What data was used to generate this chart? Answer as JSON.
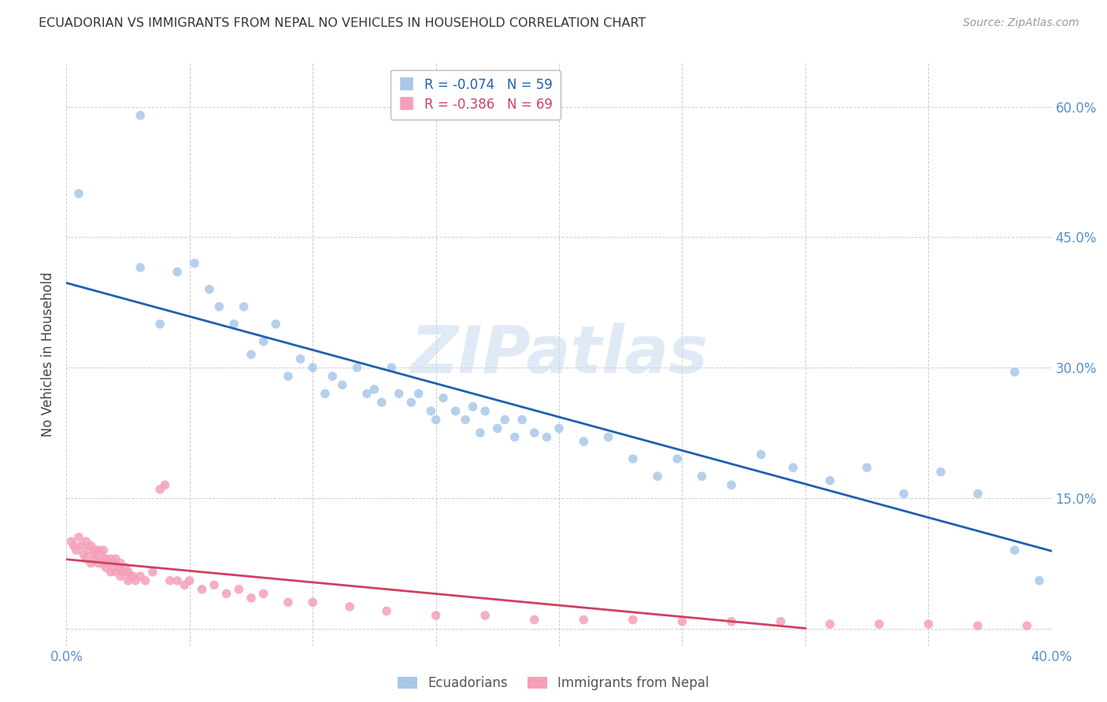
{
  "title": "ECUADORIAN VS IMMIGRANTS FROM NEPAL NO VEHICLES IN HOUSEHOLD CORRELATION CHART",
  "source": "Source: ZipAtlas.com",
  "ylabel": "No Vehicles in Household",
  "xlim": [
    0.0,
    0.4
  ],
  "ylim": [
    -0.02,
    0.65
  ],
  "xticks": [
    0.0,
    0.05,
    0.1,
    0.15,
    0.2,
    0.25,
    0.3,
    0.35,
    0.4
  ],
  "yticks": [
    0.0,
    0.15,
    0.3,
    0.45,
    0.6
  ],
  "ytick_labels": [
    "",
    "15.0%",
    "30.0%",
    "45.0%",
    "60.0%"
  ],
  "xtick_labels": [
    "0.0%",
    "",
    "",
    "",
    "",
    "",
    "",
    "",
    "40.0%"
  ],
  "watermark": "ZIPatlas",
  "blue_R": -0.074,
  "blue_N": 59,
  "pink_R": -0.386,
  "pink_N": 69,
  "blue_color": "#a8c8e8",
  "pink_color": "#f4a0b8",
  "blue_line_color": "#2060b0",
  "pink_line_color": "#d04060",
  "blue_scatter_x": [
    0.005,
    0.03,
    0.038,
    0.045,
    0.052,
    0.058,
    0.062,
    0.068,
    0.072,
    0.075,
    0.08,
    0.085,
    0.09,
    0.095,
    0.1,
    0.105,
    0.108,
    0.112,
    0.118,
    0.122,
    0.125,
    0.128,
    0.132,
    0.135,
    0.14,
    0.143,
    0.148,
    0.15,
    0.153,
    0.158,
    0.162,
    0.165,
    0.168,
    0.17,
    0.175,
    0.178,
    0.182,
    0.185,
    0.19,
    0.195,
    0.2,
    0.21,
    0.22,
    0.23,
    0.24,
    0.248,
    0.258,
    0.27,
    0.282,
    0.295,
    0.31,
    0.325,
    0.34,
    0.355,
    0.37,
    0.385,
    0.395,
    0.385,
    0.03
  ],
  "blue_scatter_y": [
    0.5,
    0.415,
    0.35,
    0.41,
    0.42,
    0.39,
    0.37,
    0.35,
    0.37,
    0.315,
    0.33,
    0.35,
    0.29,
    0.31,
    0.3,
    0.27,
    0.29,
    0.28,
    0.3,
    0.27,
    0.275,
    0.26,
    0.3,
    0.27,
    0.26,
    0.27,
    0.25,
    0.24,
    0.265,
    0.25,
    0.24,
    0.255,
    0.225,
    0.25,
    0.23,
    0.24,
    0.22,
    0.24,
    0.225,
    0.22,
    0.23,
    0.215,
    0.22,
    0.195,
    0.175,
    0.195,
    0.175,
    0.165,
    0.2,
    0.185,
    0.17,
    0.185,
    0.155,
    0.18,
    0.155,
    0.09,
    0.055,
    0.295,
    0.59
  ],
  "pink_scatter_x": [
    0.002,
    0.003,
    0.004,
    0.005,
    0.006,
    0.007,
    0.008,
    0.008,
    0.009,
    0.01,
    0.01,
    0.011,
    0.012,
    0.012,
    0.013,
    0.013,
    0.014,
    0.015,
    0.015,
    0.016,
    0.016,
    0.017,
    0.018,
    0.018,
    0.019,
    0.02,
    0.02,
    0.021,
    0.022,
    0.022,
    0.023,
    0.024,
    0.025,
    0.025,
    0.026,
    0.027,
    0.028,
    0.03,
    0.032,
    0.035,
    0.038,
    0.04,
    0.042,
    0.045,
    0.048,
    0.05,
    0.055,
    0.06,
    0.065,
    0.07,
    0.075,
    0.08,
    0.09,
    0.1,
    0.115,
    0.13,
    0.15,
    0.17,
    0.19,
    0.21,
    0.23,
    0.25,
    0.27,
    0.29,
    0.31,
    0.33,
    0.35,
    0.37,
    0.39
  ],
  "pink_scatter_y": [
    0.1,
    0.095,
    0.09,
    0.105,
    0.095,
    0.085,
    0.1,
    0.08,
    0.09,
    0.095,
    0.075,
    0.085,
    0.09,
    0.08,
    0.09,
    0.075,
    0.085,
    0.09,
    0.075,
    0.08,
    0.07,
    0.075,
    0.08,
    0.065,
    0.075,
    0.08,
    0.065,
    0.07,
    0.075,
    0.06,
    0.065,
    0.07,
    0.065,
    0.055,
    0.06,
    0.06,
    0.055,
    0.06,
    0.055,
    0.065,
    0.16,
    0.165,
    0.055,
    0.055,
    0.05,
    0.055,
    0.045,
    0.05,
    0.04,
    0.045,
    0.035,
    0.04,
    0.03,
    0.03,
    0.025,
    0.02,
    0.015,
    0.015,
    0.01,
    0.01,
    0.01,
    0.008,
    0.008,
    0.008,
    0.005,
    0.005,
    0.005,
    0.003,
    0.003
  ]
}
